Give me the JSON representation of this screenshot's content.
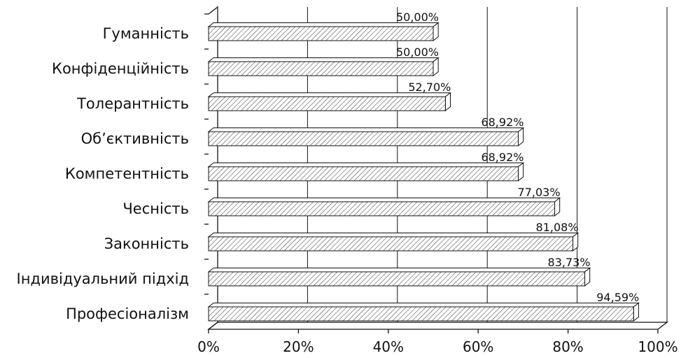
{
  "chart_data": {
    "type": "bar",
    "orientation": "horizontal",
    "style": "3d-hatched",
    "categories": [
      "Гуманність",
      "Конфіденційність",
      "Толерантність",
      "Об’єктивність",
      "Компетентність",
      "Чесність",
      "Законність",
      "Індивідуальний підхід",
      "Професіоналізм"
    ],
    "values": [
      50.0,
      50.0,
      52.7,
      68.92,
      68.92,
      77.03,
      81.08,
      83.73,
      94.59
    ],
    "value_labels": [
      "50,00%",
      "50,00%",
      "52,70%",
      "68,92%",
      "68,92%",
      "77,03%",
      "81,08%",
      "83,73%",
      "94,59%"
    ],
    "xlim": [
      0,
      100
    ],
    "x_ticks": [
      "0%",
      "20%",
      "40%",
      "60%",
      "80%",
      "100%"
    ],
    "x_tick_values": [
      0,
      20,
      40,
      60,
      80,
      100
    ],
    "grid": "vertical",
    "legend": "none",
    "title": "",
    "xlabel": "",
    "ylabel": ""
  }
}
